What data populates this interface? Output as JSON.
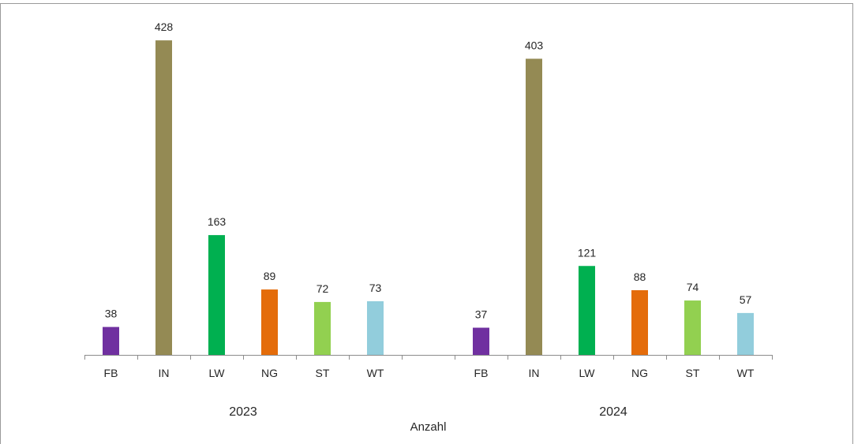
{
  "chart_data": {
    "type": "bar",
    "xlabel": "Anzahl",
    "ylim": [
      0,
      440
    ],
    "grid": false,
    "legend": "none",
    "groups": [
      {
        "label": "2023",
        "categories": [
          "FB",
          "IN",
          "LW",
          "NG",
          "ST",
          "WT"
        ],
        "values": [
          38,
          428,
          163,
          89,
          72,
          73
        ],
        "value_labels": [
          "38",
          "428",
          "163",
          "89",
          "72",
          "73"
        ]
      },
      {
        "label": "2024",
        "categories": [
          "FB",
          "IN",
          "LW",
          "NG",
          "ST",
          "WT"
        ],
        "values": [
          37,
          403,
          121,
          88,
          74,
          57
        ],
        "value_labels": [
          "37",
          "403",
          "121",
          "88",
          "74",
          "57"
        ]
      }
    ],
    "colors": {
      "FB": "#7030a0",
      "IN": "#948a54",
      "LW": "#00b050",
      "NG": "#e46c0a",
      "ST": "#92d050",
      "WT": "#92cddc"
    }
  }
}
